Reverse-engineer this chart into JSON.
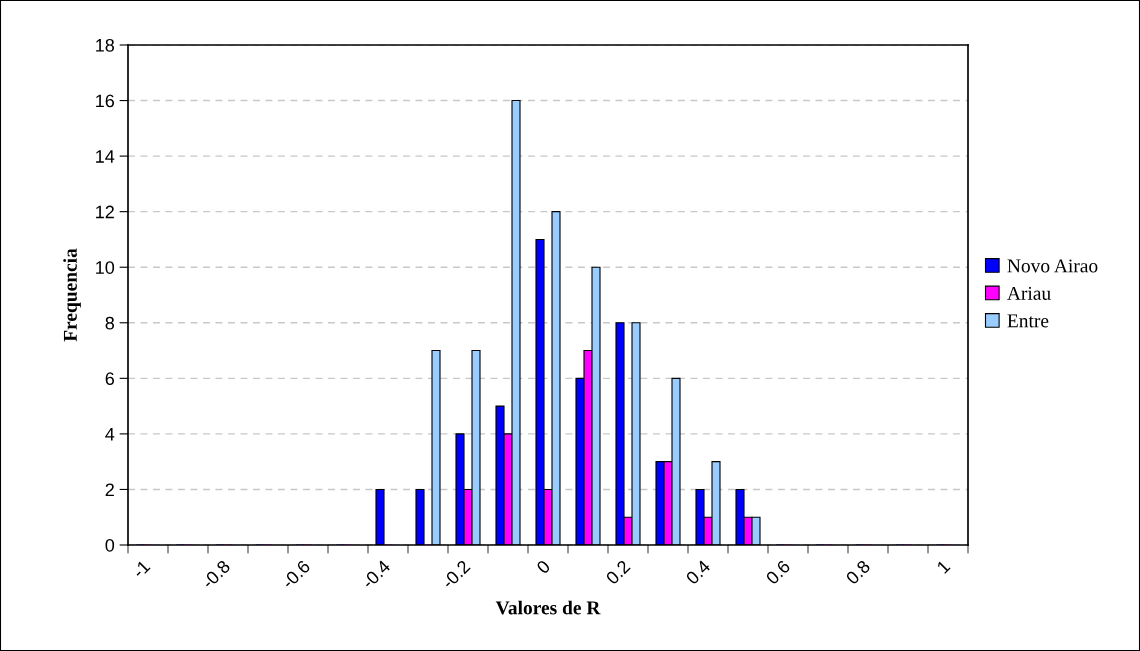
{
  "chart_data": {
    "type": "bar",
    "xlabel": "Valores de R",
    "ylabel": "Frequencia",
    "categories": [
      "-1",
      null,
      "-0.8",
      null,
      "-0.6",
      null,
      "-0.4",
      null,
      "-0.2",
      null,
      "0",
      null,
      "0.2",
      null,
      "0.4",
      null,
      "0.6",
      null,
      "0.8",
      null,
      "1"
    ],
    "series": [
      {
        "name": "Novo Airao",
        "color": "#0000ff",
        "values": [
          0,
          0,
          0,
          0,
          0,
          0,
          2,
          2,
          4,
          5,
          11,
          6,
          8,
          3,
          2,
          2,
          0,
          0,
          0,
          0,
          0
        ]
      },
      {
        "name": "Ariau",
        "color": "#ff00ff",
        "values": [
          0,
          0,
          0,
          0,
          0,
          0,
          0,
          0,
          2,
          4,
          2,
          7,
          1,
          3,
          1,
          1,
          0,
          0,
          0,
          0,
          0
        ]
      },
      {
        "name": "Entre",
        "color": "#99ccff",
        "values": [
          0,
          0,
          0,
          0,
          0,
          0,
          0,
          7,
          7,
          16,
          12,
          10,
          8,
          6,
          3,
          1,
          0,
          0,
          0,
          0,
          0
        ]
      }
    ],
    "ylim": [
      0,
      18
    ],
    "yticks": [
      0,
      2,
      4,
      6,
      8,
      10,
      12,
      14,
      16,
      18
    ],
    "grid": "y",
    "legend": "right"
  }
}
